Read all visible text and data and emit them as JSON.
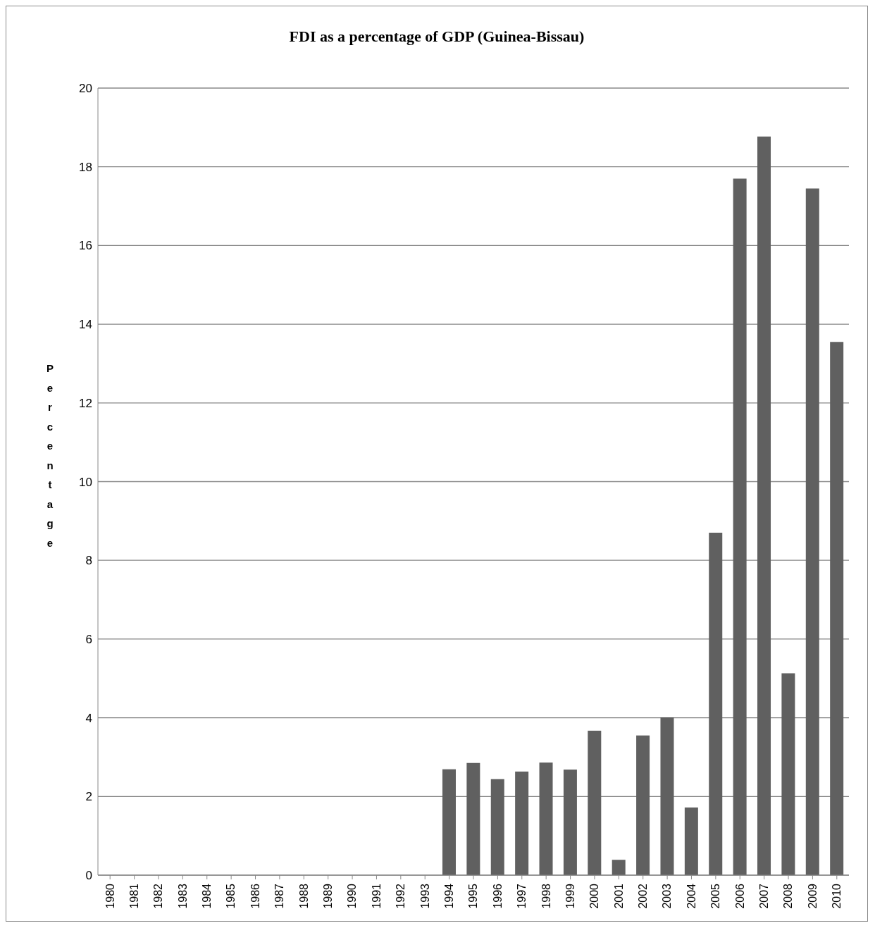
{
  "chart_data": {
    "type": "bar",
    "title": "FDI as a percentage of GDP (Guinea-Bissau)",
    "ylabel": "Percentage",
    "categories": [
      "1980",
      "1981",
      "1982",
      "1983",
      "1984",
      "1985",
      "1986",
      "1987",
      "1988",
      "1989",
      "1990",
      "1991",
      "1992",
      "1993",
      "1994",
      "1995",
      "1996",
      "1997",
      "1998",
      "1999",
      "2000",
      "2001",
      "2002",
      "2003",
      "2004",
      "2005",
      "2006",
      "2007",
      "2008",
      "2009",
      "2010"
    ],
    "values": [
      null,
      null,
      null,
      null,
      null,
      null,
      null,
      null,
      null,
      null,
      null,
      null,
      null,
      null,
      2.69,
      2.85,
      2.44,
      2.63,
      2.86,
      2.68,
      3.67,
      0.39,
      3.55,
      4.01,
      1.72,
      8.7,
      17.7,
      18.77,
      5.13,
      17.45,
      13.55
    ],
    "color": "#606060",
    "ylim": [
      0,
      20
    ],
    "yticks": [
      0,
      2,
      4,
      6,
      8,
      10,
      12,
      14,
      16,
      18,
      20
    ],
    "grid": "y"
  }
}
